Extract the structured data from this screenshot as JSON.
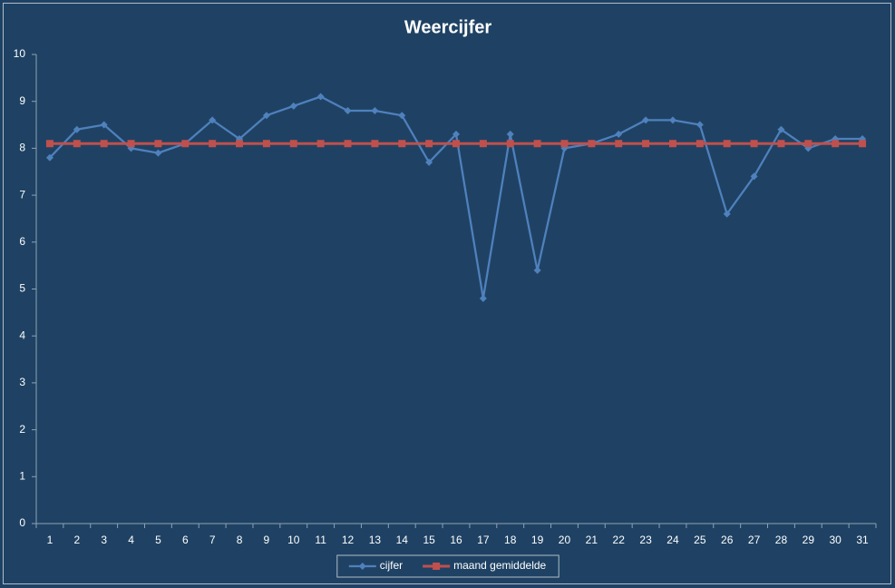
{
  "chart_data": {
    "type": "line",
    "title": "Weercijfer",
    "categories": [
      "1",
      "2",
      "3",
      "4",
      "5",
      "6",
      "7",
      "8",
      "9",
      "10",
      "11",
      "12",
      "13",
      "14",
      "15",
      "16",
      "17",
      "18",
      "19",
      "20",
      "21",
      "22",
      "23",
      "24",
      "25",
      "26",
      "27",
      "28",
      "29",
      "30",
      "31"
    ],
    "series": [
      {
        "name": "cijfer",
        "color": "#4f81bd",
        "marker": "diamond",
        "values": [
          7.8,
          8.4,
          8.5,
          8.0,
          7.9,
          8.1,
          8.6,
          8.2,
          8.7,
          8.9,
          9.1,
          8.8,
          8.8,
          8.7,
          7.7,
          8.3,
          4.8,
          8.3,
          5.4,
          8.0,
          8.1,
          8.3,
          8.6,
          8.6,
          8.5,
          6.6,
          7.4,
          8.4,
          8.0,
          8.2,
          8.2
        ]
      },
      {
        "name": "maand gemiddelde",
        "color": "#c0504d",
        "marker": "square",
        "values": [
          8.1,
          8.1,
          8.1,
          8.1,
          8.1,
          8.1,
          8.1,
          8.1,
          8.1,
          8.1,
          8.1,
          8.1,
          8.1,
          8.1,
          8.1,
          8.1,
          8.1,
          8.1,
          8.1,
          8.1,
          8.1,
          8.1,
          8.1,
          8.1,
          8.1,
          8.1,
          8.1,
          8.1,
          8.1,
          8.1,
          8.1
        ]
      }
    ],
    "ylim": [
      0,
      10
    ],
    "yticks": [
      0,
      1,
      2,
      3,
      4,
      5,
      6,
      7,
      8,
      9,
      10
    ],
    "grid": false,
    "legend": "bottom"
  }
}
